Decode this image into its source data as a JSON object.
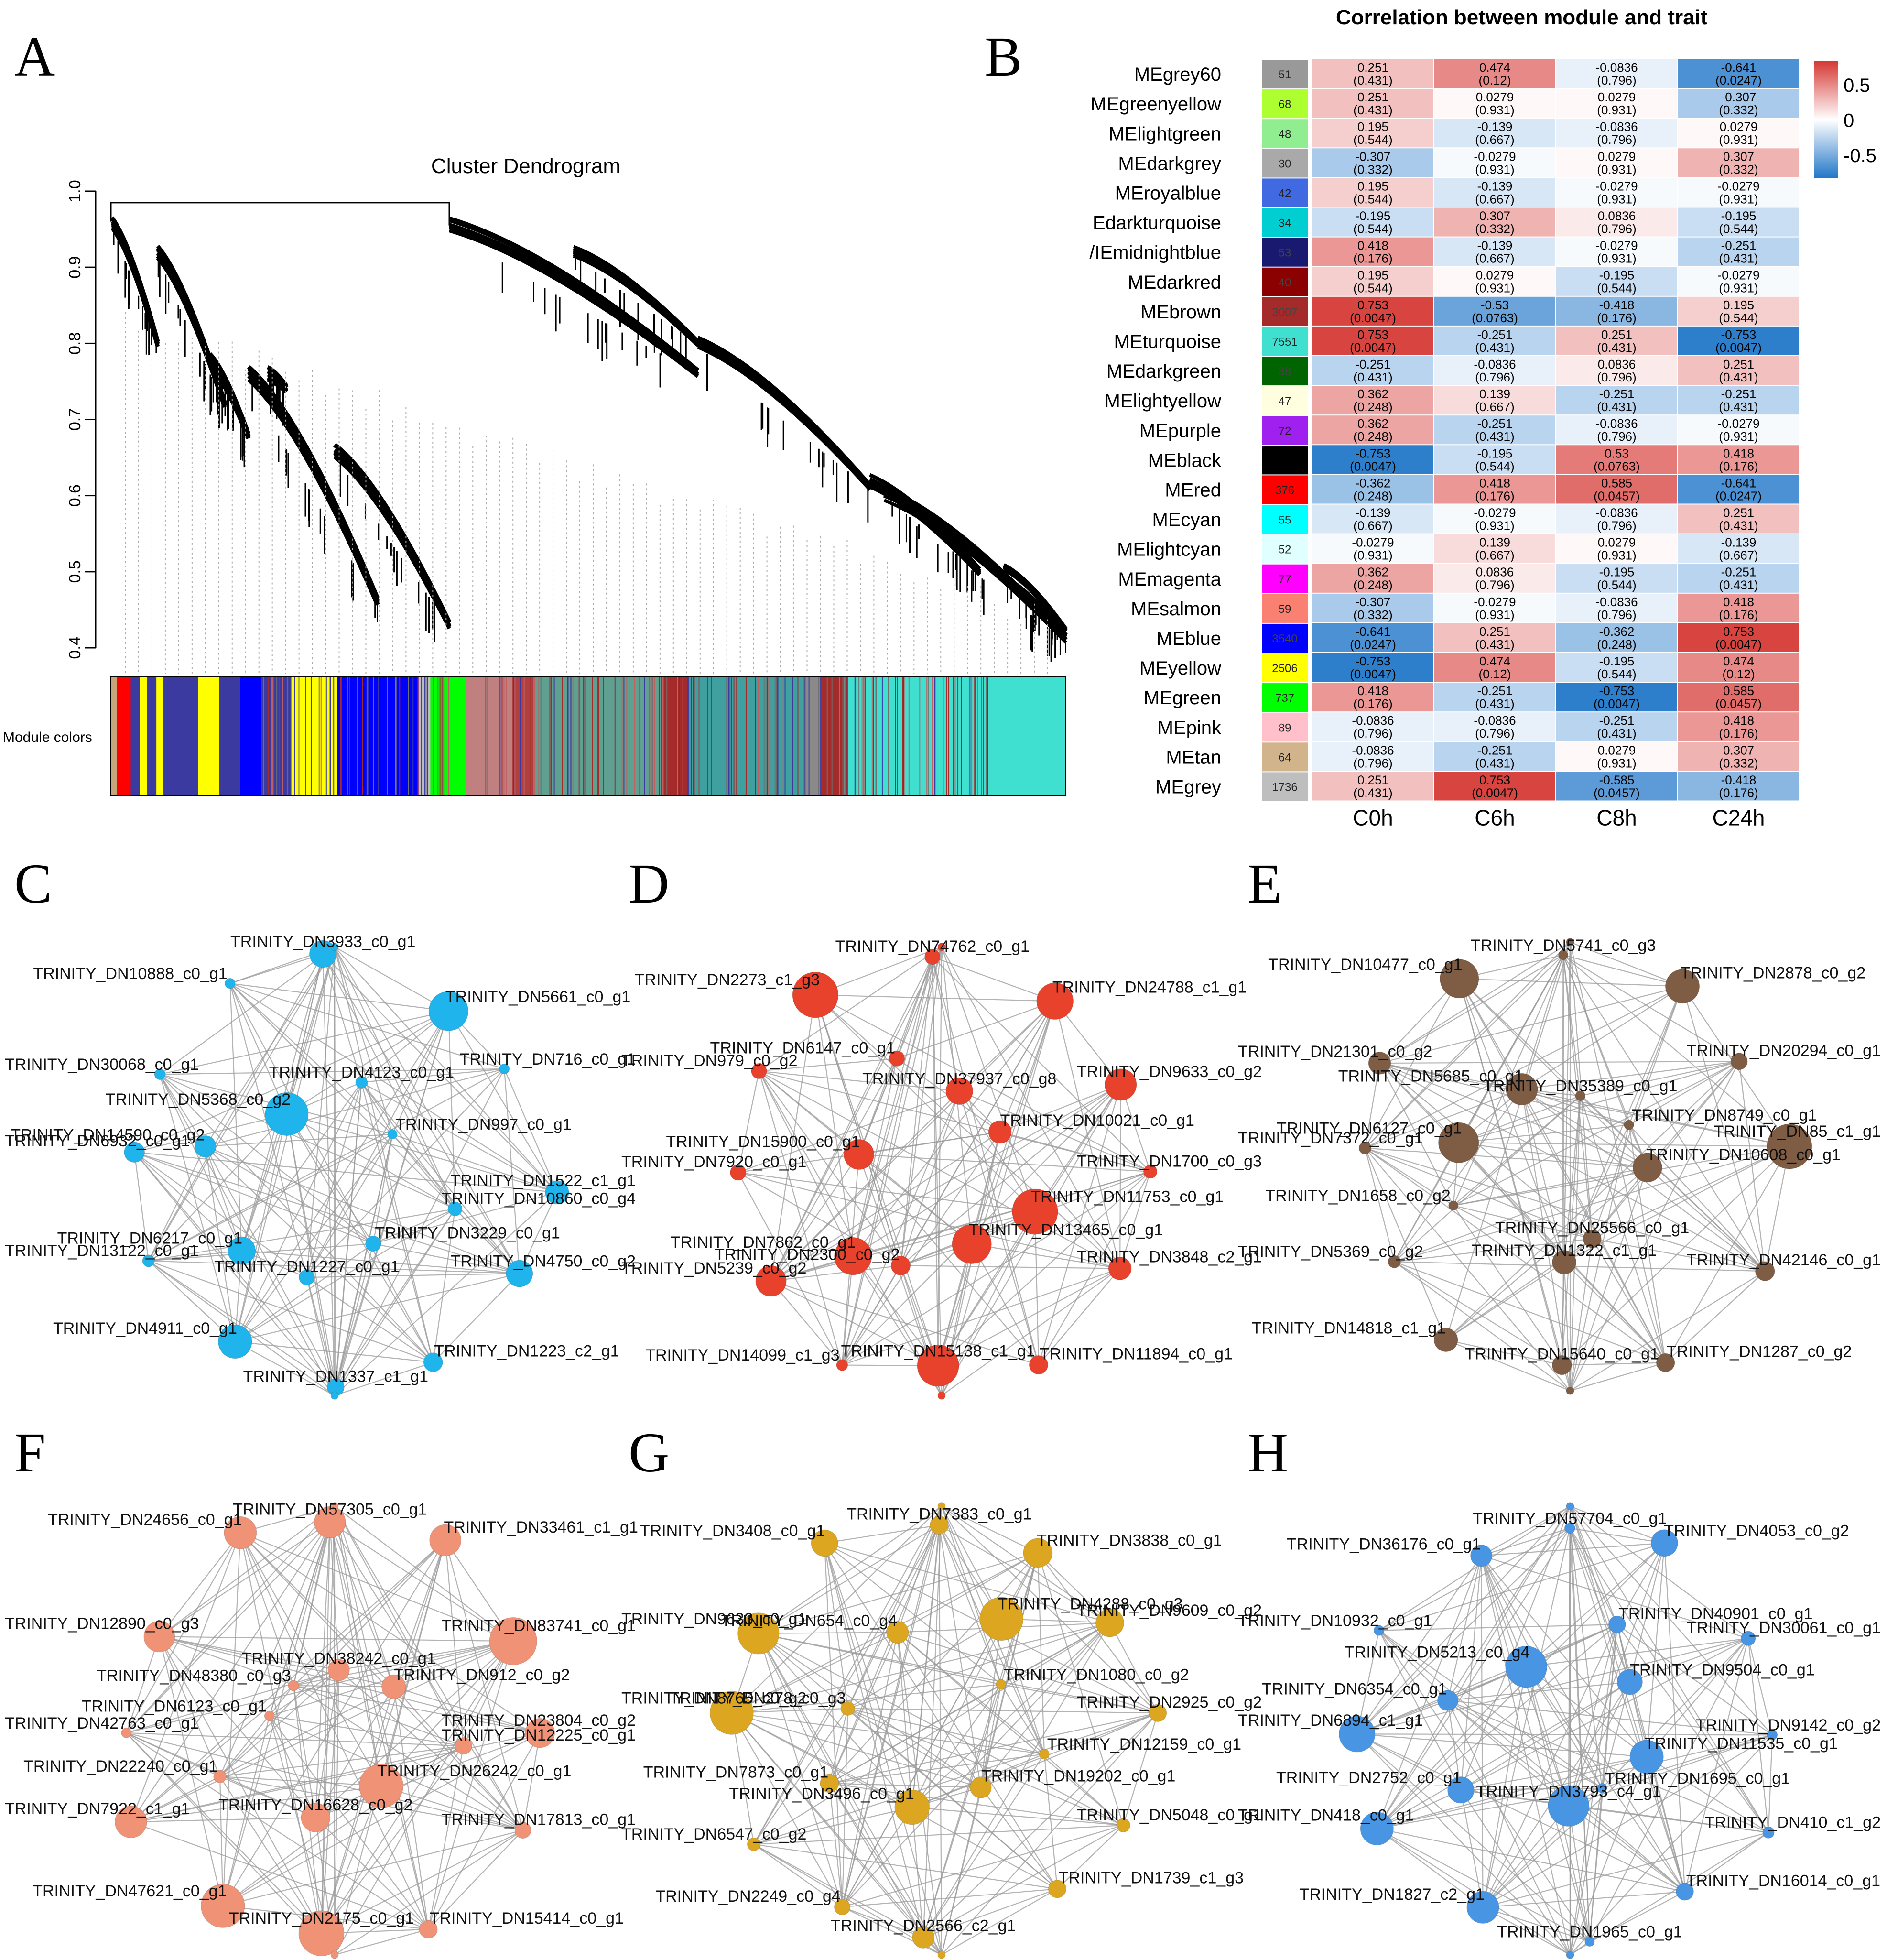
{
  "panel_labels": [
    "A",
    "B",
    "C",
    "D",
    "E",
    "F",
    "G",
    "H"
  ],
  "dendrogram": {
    "title": "Cluster Dendrogram",
    "y_ticks": [
      "1.0",
      "0.9",
      "0.8",
      "0.7",
      "0.6",
      "0.5",
      "0.4"
    ],
    "module_colors_label": "Module colors",
    "color_bar": [
      {
        "color": "#c6a57a",
        "w": 5
      },
      {
        "color": "#ff0000",
        "w": 12
      },
      {
        "color": "#3a3aa0",
        "w": 8
      },
      {
        "color": "#ffff00",
        "w": 6
      },
      {
        "color": "#3a3aa0",
        "w": 8
      },
      {
        "color": "#ffff00",
        "w": 6
      },
      {
        "color": "#3a3aa0",
        "w": 30
      },
      {
        "color": "#ffff00",
        "w": 18
      },
      {
        "color": "#3a3aa0",
        "w": 18
      },
      {
        "color": "#0000ff",
        "w": 18
      },
      {
        "color": "#3a3aa0",
        "w": 25
      },
      {
        "color": "#ffff00",
        "w": 40
      },
      {
        "color": "#0000ff",
        "w": 70
      },
      {
        "color": "#bebebe",
        "w": 10
      },
      {
        "color": "#00ff00",
        "w": 30
      },
      {
        "color": "#c08080",
        "w": 40
      },
      {
        "color": "#b04040",
        "w": 20
      },
      {
        "color": "#60a090",
        "w": 110
      },
      {
        "color": "#a52a2a",
        "w": 20
      },
      {
        "color": "#40a0a0",
        "w": 100
      },
      {
        "color": "#8a8a8a",
        "w": 15
      },
      {
        "color": "#a52a2a",
        "w": 20
      },
      {
        "color": "#40e0d0",
        "w": 190
      }
    ]
  },
  "heatmap": {
    "title": "Correlation between module and trait",
    "columns": [
      "C0h",
      "C6h",
      "C8h",
      "C24h"
    ],
    "legend_ticks": [
      "0.5",
      "0",
      "-0.5"
    ],
    "rows": [
      {
        "label": "MEgrey60",
        "color": "#999999",
        "count": "51",
        "cells": [
          [
            "0.251",
            "(0.431)"
          ],
          [
            "0.474",
            "(0.12)"
          ],
          [
            "-0.0836",
            "(0.796)"
          ],
          [
            "-0.641",
            "(0.0247)"
          ]
        ],
        "r": [
          0.251,
          0.474,
          -0.0836,
          -0.641
        ]
      },
      {
        "label": "MEgreenyellow",
        "color": "#adff2f",
        "count": "68",
        "cells": [
          [
            "0.251",
            "(0.431)"
          ],
          [
            "0.0279",
            "(0.931)"
          ],
          [
            "0.0279",
            "(0.931)"
          ],
          [
            "-0.307",
            "(0.332)"
          ]
        ],
        "r": [
          0.251,
          0.0279,
          0.0279,
          -0.307
        ]
      },
      {
        "label": "MElightgreen",
        "color": "#90ee90",
        "count": "48",
        "cells": [
          [
            "0.195",
            "(0.544)"
          ],
          [
            "-0.139",
            "(0.667)"
          ],
          [
            "-0.0836",
            "(0.796)"
          ],
          [
            "0.0279",
            "(0.931)"
          ]
        ],
        "r": [
          0.195,
          -0.139,
          -0.0836,
          0.0279
        ]
      },
      {
        "label": "MEdarkgrey",
        "color": "#a9a9a9",
        "count": "30",
        "cells": [
          [
            "-0.307",
            "(0.332)"
          ],
          [
            "-0.0279",
            "(0.931)"
          ],
          [
            "0.0279",
            "(0.931)"
          ],
          [
            "0.307",
            "(0.332)"
          ]
        ],
        "r": [
          -0.307,
          -0.0279,
          0.0279,
          0.307
        ]
      },
      {
        "label": "MEroyalblue",
        "color": "#4169e1",
        "count": "42",
        "cells": [
          [
            "0.195",
            "(0.544)"
          ],
          [
            "-0.139",
            "(0.667)"
          ],
          [
            "-0.0279",
            "(0.931)"
          ],
          [
            "-0.0279",
            "(0.931)"
          ]
        ],
        "r": [
          0.195,
          -0.139,
          -0.0279,
          -0.0279
        ]
      },
      {
        "label": "Edarkturquoise",
        "color": "#00ced1",
        "count": "34",
        "cells": [
          [
            "-0.195",
            "(0.544)"
          ],
          [
            "0.307",
            "(0.332)"
          ],
          [
            "0.0836",
            "(0.796)"
          ],
          [
            "-0.195",
            "(0.544)"
          ]
        ],
        "r": [
          -0.195,
          0.307,
          0.0836,
          -0.195
        ]
      },
      {
        "label": "/IEmidnightblue",
        "color": "#191970",
        "count": "53",
        "cells": [
          [
            "0.418",
            "(0.176)"
          ],
          [
            "-0.139",
            "(0.667)"
          ],
          [
            "-0.0279",
            "(0.931)"
          ],
          [
            "-0.251",
            "(0.431)"
          ]
        ],
        "r": [
          0.418,
          -0.139,
          -0.0279,
          -0.251
        ]
      },
      {
        "label": "MEdarkred",
        "color": "#8b0000",
        "count": "40",
        "cells": [
          [
            "0.195",
            "(0.544)"
          ],
          [
            "0.0279",
            "(0.931)"
          ],
          [
            "-0.195",
            "(0.544)"
          ],
          [
            "-0.0279",
            "(0.931)"
          ]
        ],
        "r": [
          0.195,
          0.0279,
          -0.195,
          -0.0279
        ]
      },
      {
        "label": "MEbrown",
        "color": "#a52a2a",
        "count": "3007",
        "cells": [
          [
            "0.753",
            "(0.0047)"
          ],
          [
            "-0.53",
            "(0.0763)"
          ],
          [
            "-0.418",
            "(0.176)"
          ],
          [
            "0.195",
            "(0.544)"
          ]
        ],
        "r": [
          0.753,
          -0.53,
          -0.418,
          0.195
        ]
      },
      {
        "label": "MEturquoise",
        "color": "#40e0d0",
        "count": "7551",
        "cells": [
          [
            "0.753",
            "(0.0047)"
          ],
          [
            "-0.251",
            "(0.431)"
          ],
          [
            "0.251",
            "(0.431)"
          ],
          [
            "-0.753",
            "(0.0047)"
          ]
        ],
        "r": [
          0.753,
          -0.251,
          0.251,
          -0.753
        ]
      },
      {
        "label": "MEdarkgreen",
        "color": "#006400",
        "count": "38",
        "cells": [
          [
            "-0.251",
            "(0.431)"
          ],
          [
            "-0.0836",
            "(0.796)"
          ],
          [
            "0.0836",
            "(0.796)"
          ],
          [
            "0.251",
            "(0.431)"
          ]
        ],
        "r": [
          -0.251,
          -0.0836,
          0.0836,
          0.251
        ]
      },
      {
        "label": "MElightyellow",
        "color": "#ffffe0",
        "count": "47",
        "cells": [
          [
            "0.362",
            "(0.248)"
          ],
          [
            "0.139",
            "(0.667)"
          ],
          [
            "-0.251",
            "(0.431)"
          ],
          [
            "-0.251",
            "(0.431)"
          ]
        ],
        "r": [
          0.362,
          0.139,
          -0.251,
          -0.251
        ]
      },
      {
        "label": "MEpurple",
        "color": "#a020f0",
        "count": "72",
        "cells": [
          [
            "0.362",
            "(0.248)"
          ],
          [
            "-0.251",
            "(0.431)"
          ],
          [
            "-0.0836",
            "(0.796)"
          ],
          [
            "-0.0279",
            "(0.931)"
          ]
        ],
        "r": [
          0.362,
          -0.251,
          -0.0836,
          -0.0279
        ]
      },
      {
        "label": "MEblack",
        "color": "#000000",
        "count": "",
        "cells": [
          [
            "-0.753",
            "(0.0047)"
          ],
          [
            "-0.195",
            "(0.544)"
          ],
          [
            "0.53",
            "(0.0763)"
          ],
          [
            "0.418",
            "(0.176)"
          ]
        ],
        "r": [
          -0.753,
          -0.195,
          0.53,
          0.418
        ]
      },
      {
        "label": "MEred",
        "color": "#ff0000",
        "count": "376",
        "cells": [
          [
            "-0.362",
            "(0.248)"
          ],
          [
            "0.418",
            "(0.176)"
          ],
          [
            "0.585",
            "(0.0457)"
          ],
          [
            "-0.641",
            "(0.0247)"
          ]
        ],
        "r": [
          -0.362,
          0.418,
          0.585,
          -0.641
        ]
      },
      {
        "label": "MEcyan",
        "color": "#00ffff",
        "count": "55",
        "cells": [
          [
            "-0.139",
            "(0.667)"
          ],
          [
            "-0.0279",
            "(0.931)"
          ],
          [
            "-0.0836",
            "(0.796)"
          ],
          [
            "0.251",
            "(0.431)"
          ]
        ],
        "r": [
          -0.139,
          -0.0279,
          -0.0836,
          0.251
        ]
      },
      {
        "label": "MElightcyan",
        "color": "#e0ffff",
        "count": "52",
        "cells": [
          [
            "-0.0279",
            "(0.931)"
          ],
          [
            "0.139",
            "(0.667)"
          ],
          [
            "0.0279",
            "(0.931)"
          ],
          [
            "-0.139",
            "(0.667)"
          ]
        ],
        "r": [
          -0.0279,
          0.139,
          0.0279,
          -0.139
        ]
      },
      {
        "label": "MEmagenta",
        "color": "#ff00ff",
        "count": "77",
        "cells": [
          [
            "0.362",
            "(0.248)"
          ],
          [
            "0.0836",
            "(0.796)"
          ],
          [
            "-0.195",
            "(0.544)"
          ],
          [
            "-0.251",
            "(0.431)"
          ]
        ],
        "r": [
          0.362,
          0.0836,
          -0.195,
          -0.251
        ]
      },
      {
        "label": "MEsalmon",
        "color": "#fa8072",
        "count": "59",
        "cells": [
          [
            "-0.307",
            "(0.332)"
          ],
          [
            "-0.0279",
            "(0.931)"
          ],
          [
            "-0.0836",
            "(0.796)"
          ],
          [
            "0.418",
            "(0.176)"
          ]
        ],
        "r": [
          -0.307,
          -0.0279,
          -0.0836,
          0.418
        ]
      },
      {
        "label": "MEblue",
        "color": "#0000ff",
        "count": "3540",
        "cells": [
          [
            "-0.641",
            "(0.0247)"
          ],
          [
            "0.251",
            "(0.431)"
          ],
          [
            "-0.362",
            "(0.248)"
          ],
          [
            "0.753",
            "(0.0047)"
          ]
        ],
        "r": [
          -0.641,
          0.251,
          -0.362,
          0.753
        ]
      },
      {
        "label": "MEyellow",
        "color": "#ffff00",
        "count": "2506",
        "cells": [
          [
            "-0.753",
            "(0.0047)"
          ],
          [
            "0.474",
            "(0.12)"
          ],
          [
            "-0.195",
            "(0.544)"
          ],
          [
            "0.474",
            "(0.12)"
          ]
        ],
        "r": [
          -0.753,
          0.474,
          -0.195,
          0.474
        ]
      },
      {
        "label": "MEgreen",
        "color": "#00ff00",
        "count": "737",
        "cells": [
          [
            "0.418",
            "(0.176)"
          ],
          [
            "-0.251",
            "(0.431)"
          ],
          [
            "-0.753",
            "(0.0047)"
          ],
          [
            "0.585",
            "(0.0457)"
          ]
        ],
        "r": [
          0.418,
          -0.251,
          -0.753,
          0.585
        ]
      },
      {
        "label": "MEpink",
        "color": "#ffc0cb",
        "count": "89",
        "cells": [
          [
            "-0.0836",
            "(0.796)"
          ],
          [
            "-0.0836",
            "(0.796)"
          ],
          [
            "-0.251",
            "(0.431)"
          ],
          [
            "0.418",
            "(0.176)"
          ]
        ],
        "r": [
          -0.0836,
          -0.0836,
          -0.251,
          0.418
        ]
      },
      {
        "label": "MEtan",
        "color": "#d2b48c",
        "count": "64",
        "cells": [
          [
            "-0.0836",
            "(0.796)"
          ],
          [
            "-0.251",
            "(0.431)"
          ],
          [
            "0.0279",
            "(0.931)"
          ],
          [
            "0.307",
            "(0.332)"
          ]
        ],
        "r": [
          -0.0836,
          -0.251,
          0.0279,
          0.307
        ]
      },
      {
        "label": "MEgrey",
        "color": "#bebebe",
        "count": "1736",
        "cells": [
          [
            "0.251",
            "(0.431)"
          ],
          [
            "0.753",
            "(0.0047)"
          ],
          [
            "-0.585",
            "(0.0457)"
          ],
          [
            "-0.418",
            "(0.176)"
          ]
        ],
        "r": [
          0.251,
          0.753,
          -0.585,
          -0.418
        ]
      }
    ]
  },
  "networks": [
    {
      "panel": "C",
      "color": "#1fb4ec",
      "labels": [
        "TRINITY_DN3933_c0_g1",
        "TRINITY_DN5661_c0_g1",
        "TRINITY_DN716_c0_g1",
        "TRINITY_DN1522_c1_g1",
        "TRINITY_DN4750_c0_g2",
        "TRINITY_DN1223_c2_g1",
        "TRINITY_DN1337_c1_g1",
        "TRINITY_DN4911_c0_g1",
        "TRINITY_DN13122_c0_g1",
        "TRINITY_DN6932_c0_g1",
        "TRINITY_DN30068_c0_g1",
        "TRINITY_DN10888_c0_g1",
        "TRINITY_DN10860_c0_g4",
        "TRINITY_DN3229_c0_g1",
        "TRINITY_DN1227_c0_g1",
        "TRINITY_DN6217_c0_g1",
        "TRINITY_DN14590_c0_g2",
        "TRINITY_DN5368_c0_g2",
        "TRINITY_DN4123_c0_g1",
        "TRINITY_DN997_c0_g1"
      ]
    },
    {
      "panel": "D",
      "color": "#e8412c",
      "labels": [
        "TRINITY_DN74762_c0_g1",
        "TRINITY_DN24788_c1_g1",
        "TRINITY_DN9633_c0_g2",
        "TRINITY_DN1700_c0_g3",
        "TRINITY_DN3848_c2_g1",
        "TRINITY_DN11894_c0_g1",
        "TRINITY_DN15138_c1_g1",
        "TRINITY_DN14099_c1_g3",
        "TRINITY_DN5239_c0_g2",
        "TRINITY_DN7920_c0_g1",
        "TRINITY_DN979_c0_g2",
        "TRINITY_DN2273_c1_g3",
        "TRINITY_DN11753_c0_g1",
        "TRINITY_DN13465_c0_g1",
        "TRINITY_DN2300_c0_g2",
        "TRINITY_DN7862_c0_g1",
        "TRINITY_DN15900_c0_g1",
        "TRINITY_DN6147_c0_g1",
        "TRINITY_DN37937_c0_g8",
        "TRINITY_DN10021_c0_g1"
      ]
    },
    {
      "panel": "E",
      "color": "#7f5c44",
      "labels": [
        "TRINITY_DN5741_c0_g3",
        "TRINITY_DN2878_c0_g2",
        "TRINITY_DN20294_c0_g1",
        "TRINITY_DN85_c1_g1",
        "TRINITY_DN42146_c0_g1",
        "TRINITY_DN1287_c0_g2",
        "TRINITY_DN15640_c0_g1",
        "TRINITY_DN14818_c1_g1",
        "TRINITY_DN5369_c0_g2",
        "TRINITY_DN7372_c0_g1",
        "TRINITY_DN21301_c0_g2",
        "TRINITY_DN10477_c0_g1",
        "TRINITY_DN10608_c0_g1",
        "TRINITY_DN25566_c0_g1",
        "TRINITY_DN1322_c1_g1",
        "TRINITY_DN1658_c0_g2",
        "TRINITY_DN6127_c0_g1",
        "TRINITY_DN5685_c0_g1",
        "TRINITY_DN35389_c0_g1",
        "TRINITY_DN8749_c0_g1"
      ]
    },
    {
      "panel": "F",
      "color": "#ef9276",
      "labels": [
        "TRINITY_DN57305_c0_g1",
        "TRINITY_DN33461_c1_g1",
        "TRINITY_DN83741_c0_g1",
        "TRINITY_DN23804_c0_g2",
        "TRINITY_DN17813_c0_g1",
        "TRINITY_DN15414_c0_g1",
        "TRINITY_DN2175_c0_g1",
        "TRINITY_DN47621_c0_g1",
        "TRINITY_DN7922_c1_g1",
        "TRINITY_DN42763_c0_g1",
        "TRINITY_DN12890_c0_g3",
        "TRINITY_DN24656_c0_g1",
        "TRINITY_DN12225_c0_g1",
        "TRINITY_DN26242_c0_g1",
        "TRINITY_DN16628_c0_g2",
        "TRINITY_DN22240_c0_g1",
        "TRINITY_DN6123_c0_g1",
        "TRINITY_DN48380_c0_g3",
        "TRINITY_DN38242_c0_g1",
        "TRINITY_DN912_c0_g2"
      ]
    },
    {
      "panel": "G",
      "color": "#dda621",
      "labels": [
        "TRINITY_DN7383_c0_g1",
        "TRINITY_DN3838_c0_g1",
        "TRINITY_DN9609_c0_g2",
        "TRINITY_DN2925_c0_g2",
        "TRINITY_DN5048_c0_g1",
        "TRINITY_DN1739_c1_g3",
        "TRINITY_DN2566_c2_g1",
        "TRINITY_DN2249_c0_g4",
        "TRINITY_DN6547_c0_g2",
        "TRINITY_DN8765_c0_g2",
        "TRINITY_DN9633_c0_g1",
        "TRINITY_DN3408_c0_g1",
        "TRINITY_DN12159_c0_g1",
        "TRINITY_DN19202_c0_g1",
        "TRINITY_DN3496_c0_g1",
        "TRINITY_DN7873_c0_g1",
        "TRINITY_DN278_c0_g3",
        "TRINITY_DN654_c0_g4",
        "TRINITY_DN4288_c0_g3",
        "TRINITY_DN1080_c0_g2"
      ]
    },
    {
      "panel": "H",
      "color": "#4895e4",
      "labels": [
        "TRINITY_DN57704_c0_g1",
        "TRINITY_DN4053_c0_g2",
        "TRINITY_DN30061_c0_g1",
        "TRINITY_DN9142_c0_g2",
        "TRINITY_DN410_c1_g2",
        "TRINITY_DN16014_c0_g1",
        "TRINITY_DN1965_c0_g1",
        "TRINITY_DN1827_c2_g1",
        "TRINITY_DN418_c0_g1",
        "TRINITY_DN6894_c1_g1",
        "TRINITY_DN10932_c0_g1",
        "TRINITY_DN36176_c0_g1",
        "TRINITY_DN11535_c0_g1",
        "TRINITY_DN1695_c0_g1",
        "TRINITY_DN3793_c4_g1",
        "TRINITY_DN2752_c0_g1",
        "TRINITY_DN6354_c0_g1",
        "TRINITY_DN5213_c0_g4",
        "TRINITY_DN40901_c0_g1",
        "TRINITY_DN9504_c0_g1"
      ]
    }
  ]
}
